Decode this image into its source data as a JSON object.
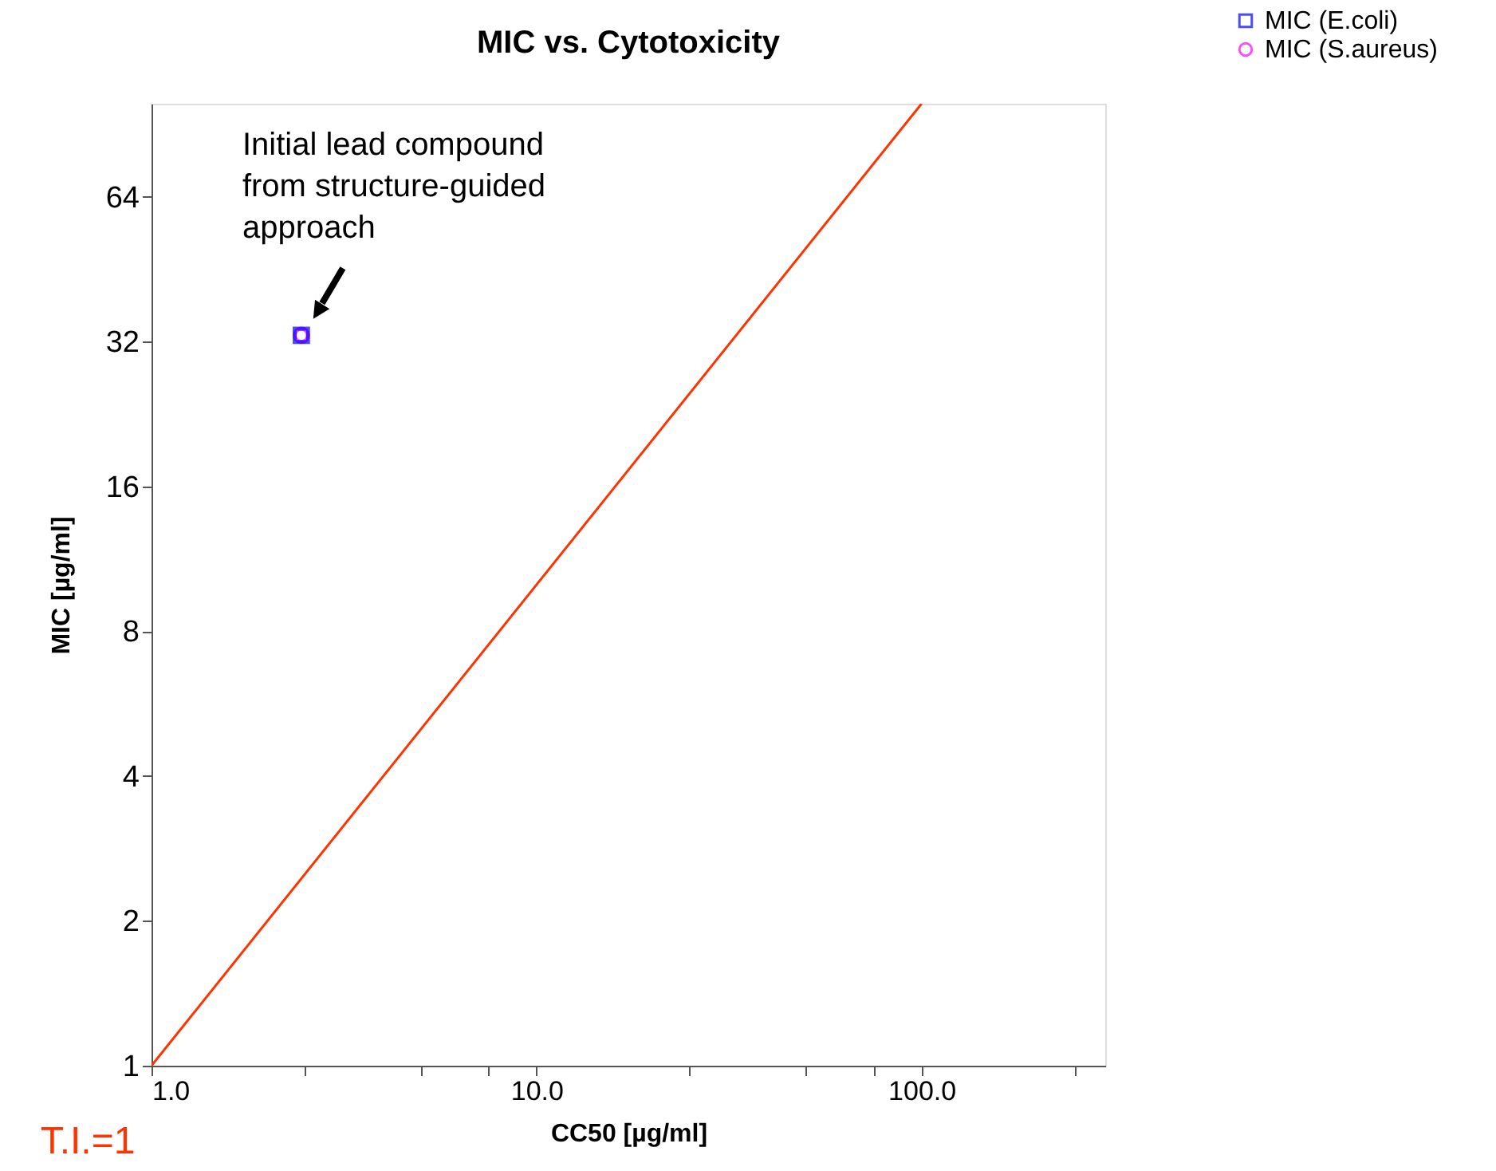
{
  "chart_data": {
    "type": "scatter",
    "title": "MIC vs. Cytotoxicity",
    "xlabel": "CC50 [µg/ml]",
    "ylabel": "MIC [µg/ml]",
    "log": "xy",
    "xlim": [
      1,
      300
    ],
    "xticks": [
      {
        "value": 1,
        "label": "1.0"
      },
      {
        "value": 2.5,
        "label": null
      },
      {
        "value": 5,
        "label": null
      },
      {
        "value": 7.5,
        "label": null
      },
      {
        "value": 10,
        "label": "10.0"
      },
      {
        "value": 25,
        "label": null
      },
      {
        "value": 50,
        "label": null
      },
      {
        "value": 75,
        "label": null
      },
      {
        "value": 100,
        "label": "100.0"
      },
      {
        "value": 250,
        "label": null
      }
    ],
    "ylim": [
      1,
      100
    ],
    "yticks": [
      1,
      2,
      4,
      8,
      16,
      32,
      64
    ],
    "grid": false,
    "legend": "top right",
    "series": [
      {
        "name": "MIC (E.coli)",
        "marker": "square",
        "color": "#0000ff",
        "x": [
          2.45
        ],
        "values": [
          33
        ]
      },
      {
        "name": "MIC (S.aureus)",
        "marker": "circle",
        "color": "#ff00ff",
        "x": [
          2.45
        ],
        "values": [
          33
        ]
      },
      {
        "name": "T.I.=1",
        "type": "line",
        "line_style": "solid",
        "color": "#ff3300",
        "x": [
          1,
          100
        ],
        "values": [
          1,
          100
        ]
      }
    ],
    "annotations": [
      {
        "text": "Initial lead compound\nfrom structure-guided\napproach",
        "x": 2.45,
        "y": 33
      }
    ]
  }
}
